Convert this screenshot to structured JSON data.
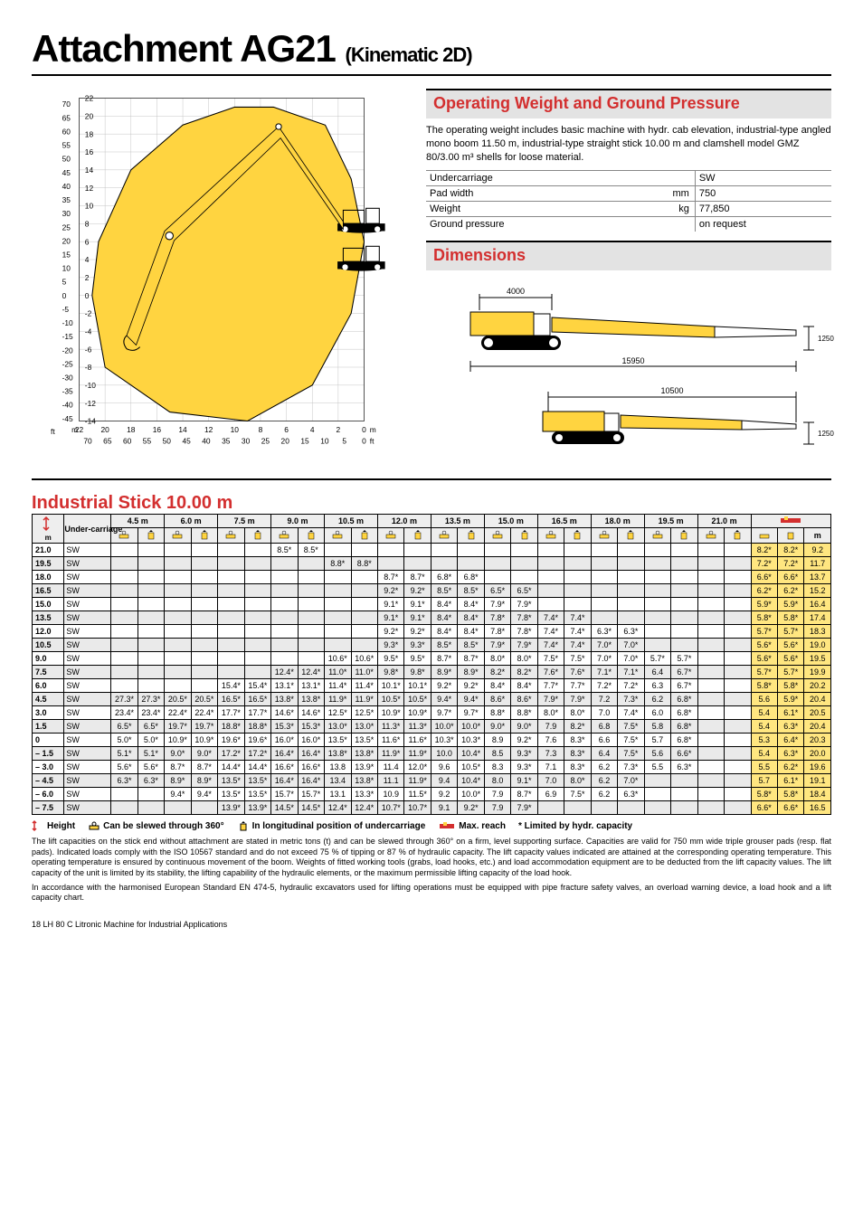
{
  "title": "Attachment AG21",
  "subtitle": "(Kinematic 2D)",
  "reach_chart": {
    "y_axis_m": [
      22,
      20,
      18,
      16,
      14,
      12,
      10,
      8,
      6,
      4,
      2,
      0,
      -2,
      -4,
      -6,
      -8,
      -10,
      -12,
      -14
    ],
    "y_axis_ft": [
      70,
      65,
      60,
      55,
      50,
      45,
      40,
      35,
      30,
      25,
      20,
      15,
      10,
      5,
      0,
      -5,
      -10,
      -15,
      -20,
      -25,
      -30,
      -35,
      -40,
      -45
    ],
    "x_axis_m": [
      22,
      20,
      18,
      16,
      14,
      12,
      10,
      8,
      6,
      4,
      2,
      0
    ],
    "x_axis_ft": [
      70,
      65,
      60,
      55,
      50,
      45,
      40,
      35,
      30,
      25,
      20,
      15,
      10,
      5,
      0
    ],
    "envelope_color": "#ffd440",
    "envelope_stroke": "#000",
    "grid_color": "#aaa"
  },
  "op_weight": {
    "heading": "Operating Weight and Ground Pressure",
    "text": "The operating weight includes basic machine with hydr. cab elevation, industrial-type angled mono boom 11.50 m, industrial-type straight stick 10.00 m and clamshell model GMZ 80/3.00 m³ shells for loose material.",
    "rows": [
      {
        "label": "Undercarriage",
        "unit": "",
        "value": "SW"
      },
      {
        "label": "Pad width",
        "unit": "mm",
        "value": "750"
      },
      {
        "label": "Weight",
        "unit": "kg",
        "value": "77,850"
      },
      {
        "label": "Ground pressure",
        "unit": "",
        "value": "on request"
      }
    ]
  },
  "dimensions": {
    "heading": "Dimensions",
    "top_width": "4000",
    "base_length": "15950",
    "over_length": "10500",
    "upper_h": "1250",
    "lower_h": "1250"
  },
  "stick": {
    "heading": "Industrial Stick 10.00 m",
    "reaches": [
      "4.5 m",
      "6.0 m",
      "7.5 m",
      "9.0 m",
      "10.5 m",
      "12.0 m",
      "13.5 m",
      "15.0 m",
      "16.5 m",
      "18.0 m",
      "19.5 m",
      "21.0 m"
    ],
    "col_under_label": "Under-carriage",
    "col_m": "m",
    "max_reach_header": "",
    "rows": [
      {
        "h": "21.0",
        "uc": "SW",
        "c": [
          "",
          "",
          "",
          "",
          "",
          "",
          "8.5*",
          "8.5*",
          "",
          "",
          "",
          "",
          "",
          "",
          "",
          "",
          "",
          "",
          "",
          "",
          "",
          "",
          "",
          ""
        ],
        "mr": [
          "8.2*",
          "8.2*",
          "9.2"
        ]
      },
      {
        "h": "19.5",
        "uc": "SW",
        "c": [
          "",
          "",
          "",
          "",
          "",
          "",
          "",
          "",
          "8.8*",
          "8.8*",
          "",
          "",
          "",
          "",
          "",
          "",
          "",
          "",
          "",
          "",
          "",
          "",
          "",
          ""
        ],
        "mr": [
          "7.2*",
          "7.2*",
          "11.7"
        ]
      },
      {
        "h": "18.0",
        "uc": "SW",
        "c": [
          "",
          "",
          "",
          "",
          "",
          "",
          "",
          "",
          "",
          "",
          "8.7*",
          "8.7*",
          "6.8*",
          "6.8*",
          "",
          "",
          "",
          "",
          "",
          "",
          "",
          "",
          "",
          ""
        ],
        "mr": [
          "6.6*",
          "6.6*",
          "13.7"
        ]
      },
      {
        "h": "16.5",
        "uc": "SW",
        "c": [
          "",
          "",
          "",
          "",
          "",
          "",
          "",
          "",
          "",
          "",
          "9.2*",
          "9.2*",
          "8.5*",
          "8.5*",
          "6.5*",
          "6.5*",
          "",
          "",
          "",
          "",
          "",
          "",
          "",
          ""
        ],
        "mr": [
          "6.2*",
          "6.2*",
          "15.2"
        ]
      },
      {
        "h": "15.0",
        "uc": "SW",
        "c": [
          "",
          "",
          "",
          "",
          "",
          "",
          "",
          "",
          "",
          "",
          "9.1*",
          "9.1*",
          "8.4*",
          "8.4*",
          "7.9*",
          "7.9*",
          "",
          "",
          "",
          "",
          "",
          "",
          "",
          ""
        ],
        "mr": [
          "5.9*",
          "5.9*",
          "16.4"
        ]
      },
      {
        "h": "13.5",
        "uc": "SW",
        "c": [
          "",
          "",
          "",
          "",
          "",
          "",
          "",
          "",
          "",
          "",
          "9.1*",
          "9.1*",
          "8.4*",
          "8.4*",
          "7.8*",
          "7.8*",
          "7.4*",
          "7.4*",
          "",
          "",
          "",
          "",
          "",
          ""
        ],
        "mr": [
          "5.8*",
          "5.8*",
          "17.4"
        ]
      },
      {
        "h": "12.0",
        "uc": "SW",
        "c": [
          "",
          "",
          "",
          "",
          "",
          "",
          "",
          "",
          "",
          "",
          "9.2*",
          "9.2*",
          "8.4*",
          "8.4*",
          "7.8*",
          "7.8*",
          "7.4*",
          "7.4*",
          "6.3*",
          "6.3*",
          "",
          "",
          "",
          ""
        ],
        "mr": [
          "5.7*",
          "5.7*",
          "18.3"
        ]
      },
      {
        "h": "10.5",
        "uc": "SW",
        "c": [
          "",
          "",
          "",
          "",
          "",
          "",
          "",
          "",
          "",
          "",
          "9.3*",
          "9.3*",
          "8.5*",
          "8.5*",
          "7.9*",
          "7.9*",
          "7.4*",
          "7.4*",
          "7.0*",
          "7.0*",
          "",
          "",
          "",
          ""
        ],
        "mr": [
          "5.6*",
          "5.6*",
          "19.0"
        ]
      },
      {
        "h": "9.0",
        "uc": "SW",
        "c": [
          "",
          "",
          "",
          "",
          "",
          "",
          "",
          "",
          "10.6*",
          "10.6*",
          "9.5*",
          "9.5*",
          "8.7*",
          "8.7*",
          "8.0*",
          "8.0*",
          "7.5*",
          "7.5*",
          "7.0*",
          "7.0*",
          "5.7*",
          "5.7*",
          "",
          ""
        ],
        "mr": [
          "5.6*",
          "5.6*",
          "19.5"
        ]
      },
      {
        "h": "7.5",
        "uc": "SW",
        "c": [
          "",
          "",
          "",
          "",
          "",
          "",
          "12.4*",
          "12.4*",
          "11.0*",
          "11.0*",
          "9.8*",
          "9.8*",
          "8.9*",
          "8.9*",
          "8.2*",
          "8.2*",
          "7.6*",
          "7.6*",
          "7.1*",
          "7.1*",
          "6.4",
          "6.7*",
          "",
          ""
        ],
        "mr": [
          "5.7*",
          "5.7*",
          "19.9"
        ]
      },
      {
        "h": "6.0",
        "uc": "SW",
        "c": [
          "",
          "",
          "",
          "",
          "15.4*",
          "15.4*",
          "13.1*",
          "13.1*",
          "11.4*",
          "11.4*",
          "10.1*",
          "10.1*",
          "9.2*",
          "9.2*",
          "8.4*",
          "8.4*",
          "7.7*",
          "7.7*",
          "7.2*",
          "7.2*",
          "6.3",
          "6.7*",
          "",
          ""
        ],
        "mr": [
          "5.8*",
          "5.8*",
          "20.2"
        ]
      },
      {
        "h": "4.5",
        "uc": "SW",
        "c": [
          "27.3*",
          "27.3*",
          "20.5*",
          "20.5*",
          "16.5*",
          "16.5*",
          "13.8*",
          "13.8*",
          "11.9*",
          "11.9*",
          "10.5*",
          "10.5*",
          "9.4*",
          "9.4*",
          "8.6*",
          "8.6*",
          "7.9*",
          "7.9*",
          "7.2",
          "7.3*",
          "6.2",
          "6.8*",
          "",
          ""
        ],
        "mr": [
          "5.6",
          "5.9*",
          "20.4"
        ]
      },
      {
        "h": "3.0",
        "uc": "SW",
        "c": [
          "23.4*",
          "23.4*",
          "22.4*",
          "22.4*",
          "17.7*",
          "17.7*",
          "14.6*",
          "14.6*",
          "12.5*",
          "12.5*",
          "10.9*",
          "10.9*",
          "9.7*",
          "9.7*",
          "8.8*",
          "8.8*",
          "8.0*",
          "8.0*",
          "7.0",
          "7.4*",
          "6.0",
          "6.8*",
          "",
          ""
        ],
        "mr": [
          "5.4",
          "6.1*",
          "20.5"
        ]
      },
      {
        "h": "1.5",
        "uc": "SW",
        "c": [
          "6.5*",
          "6.5*",
          "19.7*",
          "19.7*",
          "18.8*",
          "18.8*",
          "15.3*",
          "15.3*",
          "13.0*",
          "13.0*",
          "11.3*",
          "11.3*",
          "10.0*",
          "10.0*",
          "9.0*",
          "9.0*",
          "7.9",
          "8.2*",
          "6.8",
          "7.5*",
          "5.8",
          "6.8*",
          "",
          ""
        ],
        "mr": [
          "5.4",
          "6.3*",
          "20.4"
        ]
      },
      {
        "h": "0",
        "uc": "SW",
        "c": [
          "5.0*",
          "5.0*",
          "10.9*",
          "10.9*",
          "19.6*",
          "19.6*",
          "16.0*",
          "16.0*",
          "13.5*",
          "13.5*",
          "11.6*",
          "11.6*",
          "10.3*",
          "10.3*",
          "8.9",
          "9.2*",
          "7.6",
          "8.3*",
          "6.6",
          "7.5*",
          "5.7",
          "6.8*",
          "",
          ""
        ],
        "mr": [
          "5.3",
          "6.4*",
          "20.3"
        ]
      },
      {
        "h": "– 1.5",
        "uc": "SW",
        "c": [
          "5.1*",
          "5.1*",
          "9.0*",
          "9.0*",
          "17.2*",
          "17.2*",
          "16.4*",
          "16.4*",
          "13.8*",
          "13.8*",
          "11.9*",
          "11.9*",
          "10.0",
          "10.4*",
          "8.5",
          "9.3*",
          "7.3",
          "8.3*",
          "6.4",
          "7.5*",
          "5.6",
          "6.6*",
          "",
          ""
        ],
        "mr": [
          "5.4",
          "6.3*",
          "20.0"
        ]
      },
      {
        "h": "– 3.0",
        "uc": "SW",
        "c": [
          "5.6*",
          "5.6*",
          "8.7*",
          "8.7*",
          "14.4*",
          "14.4*",
          "16.6*",
          "16.6*",
          "13.8",
          "13.9*",
          "11.4",
          "12.0*",
          "9.6",
          "10.5*",
          "8.3",
          "9.3*",
          "7.1",
          "8.3*",
          "6.2",
          "7.3*",
          "5.5",
          "6.3*",
          "",
          ""
        ],
        "mr": [
          "5.5",
          "6.2*",
          "19.6"
        ]
      },
      {
        "h": "– 4.5",
        "uc": "SW",
        "c": [
          "6.3*",
          "6.3*",
          "8.9*",
          "8.9*",
          "13.5*",
          "13.5*",
          "16.4*",
          "16.4*",
          "13.4",
          "13.8*",
          "11.1",
          "11.9*",
          "9.4",
          "10.4*",
          "8.0",
          "9.1*",
          "7.0",
          "8.0*",
          "6.2",
          "7.0*",
          "",
          "",
          "",
          ""
        ],
        "mr": [
          "5.7",
          "6.1*",
          "19.1"
        ]
      },
      {
        "h": "– 6.0",
        "uc": "SW",
        "c": [
          "",
          "",
          "9.4*",
          "9.4*",
          "13.5*",
          "13.5*",
          "15.7*",
          "15.7*",
          "13.1",
          "13.3*",
          "10.9",
          "11.5*",
          "9.2",
          "10.0*",
          "7.9",
          "8.7*",
          "6.9",
          "7.5*",
          "6.2",
          "6.3*",
          "",
          "",
          "",
          ""
        ],
        "mr": [
          "5.8*",
          "5.8*",
          "18.4"
        ]
      },
      {
        "h": "– 7.5",
        "uc": "SW",
        "c": [
          "",
          "",
          "",
          "",
          "13.9*",
          "13.9*",
          "14.5*",
          "14.5*",
          "12.4*",
          "12.4*",
          "10.7*",
          "10.7*",
          "9.1",
          "9.2*",
          "7.9",
          "7.9*",
          "",
          "",
          "",
          "",
          "",
          "",
          "",
          ""
        ],
        "mr": [
          "6.6*",
          "6.6*",
          "16.5"
        ]
      }
    ]
  },
  "legend": {
    "height": "Height",
    "slew": "Can be slewed through 360°",
    "longit": "In longitudinal position of undercarriage",
    "maxreach": "Max. reach",
    "limited": "* Limited by hydr. capacity"
  },
  "notes": {
    "p1": "The lift capacities on the stick end without attachment are stated in metric tons (t) and can be slewed through 360° on a firm, level supporting surface. Capacities are valid for 750 mm wide triple grouser pads (resp. flat pads). Indicated loads comply with the ISO 10567 standard and do not exceed 75 % of tipping or 87 % of hydraulic capacity. The lift capacity values indicated are attained at the corresponding operating temperature. This operating temperature is ensured by continuous movement of the boom. Weights of fitted working tools (grabs, load hooks, etc.) and load accommodation equipment are to be deducted from the lift capacity values. The lift capacity of the unit is limited by its stability, the lifting capability of the hydraulic elements, or the maximum permissible lifting capacity of the load hook.",
    "p2": "In accordance with the harmonised European Standard EN 474-5, hydraulic excavators used for lifting operations must be equipped with pipe fracture safety valves, an overload warning device, a load hook and a lift capacity chart."
  },
  "footer": "18  LH 80 C Litronic Machine for Industrial Applications"
}
